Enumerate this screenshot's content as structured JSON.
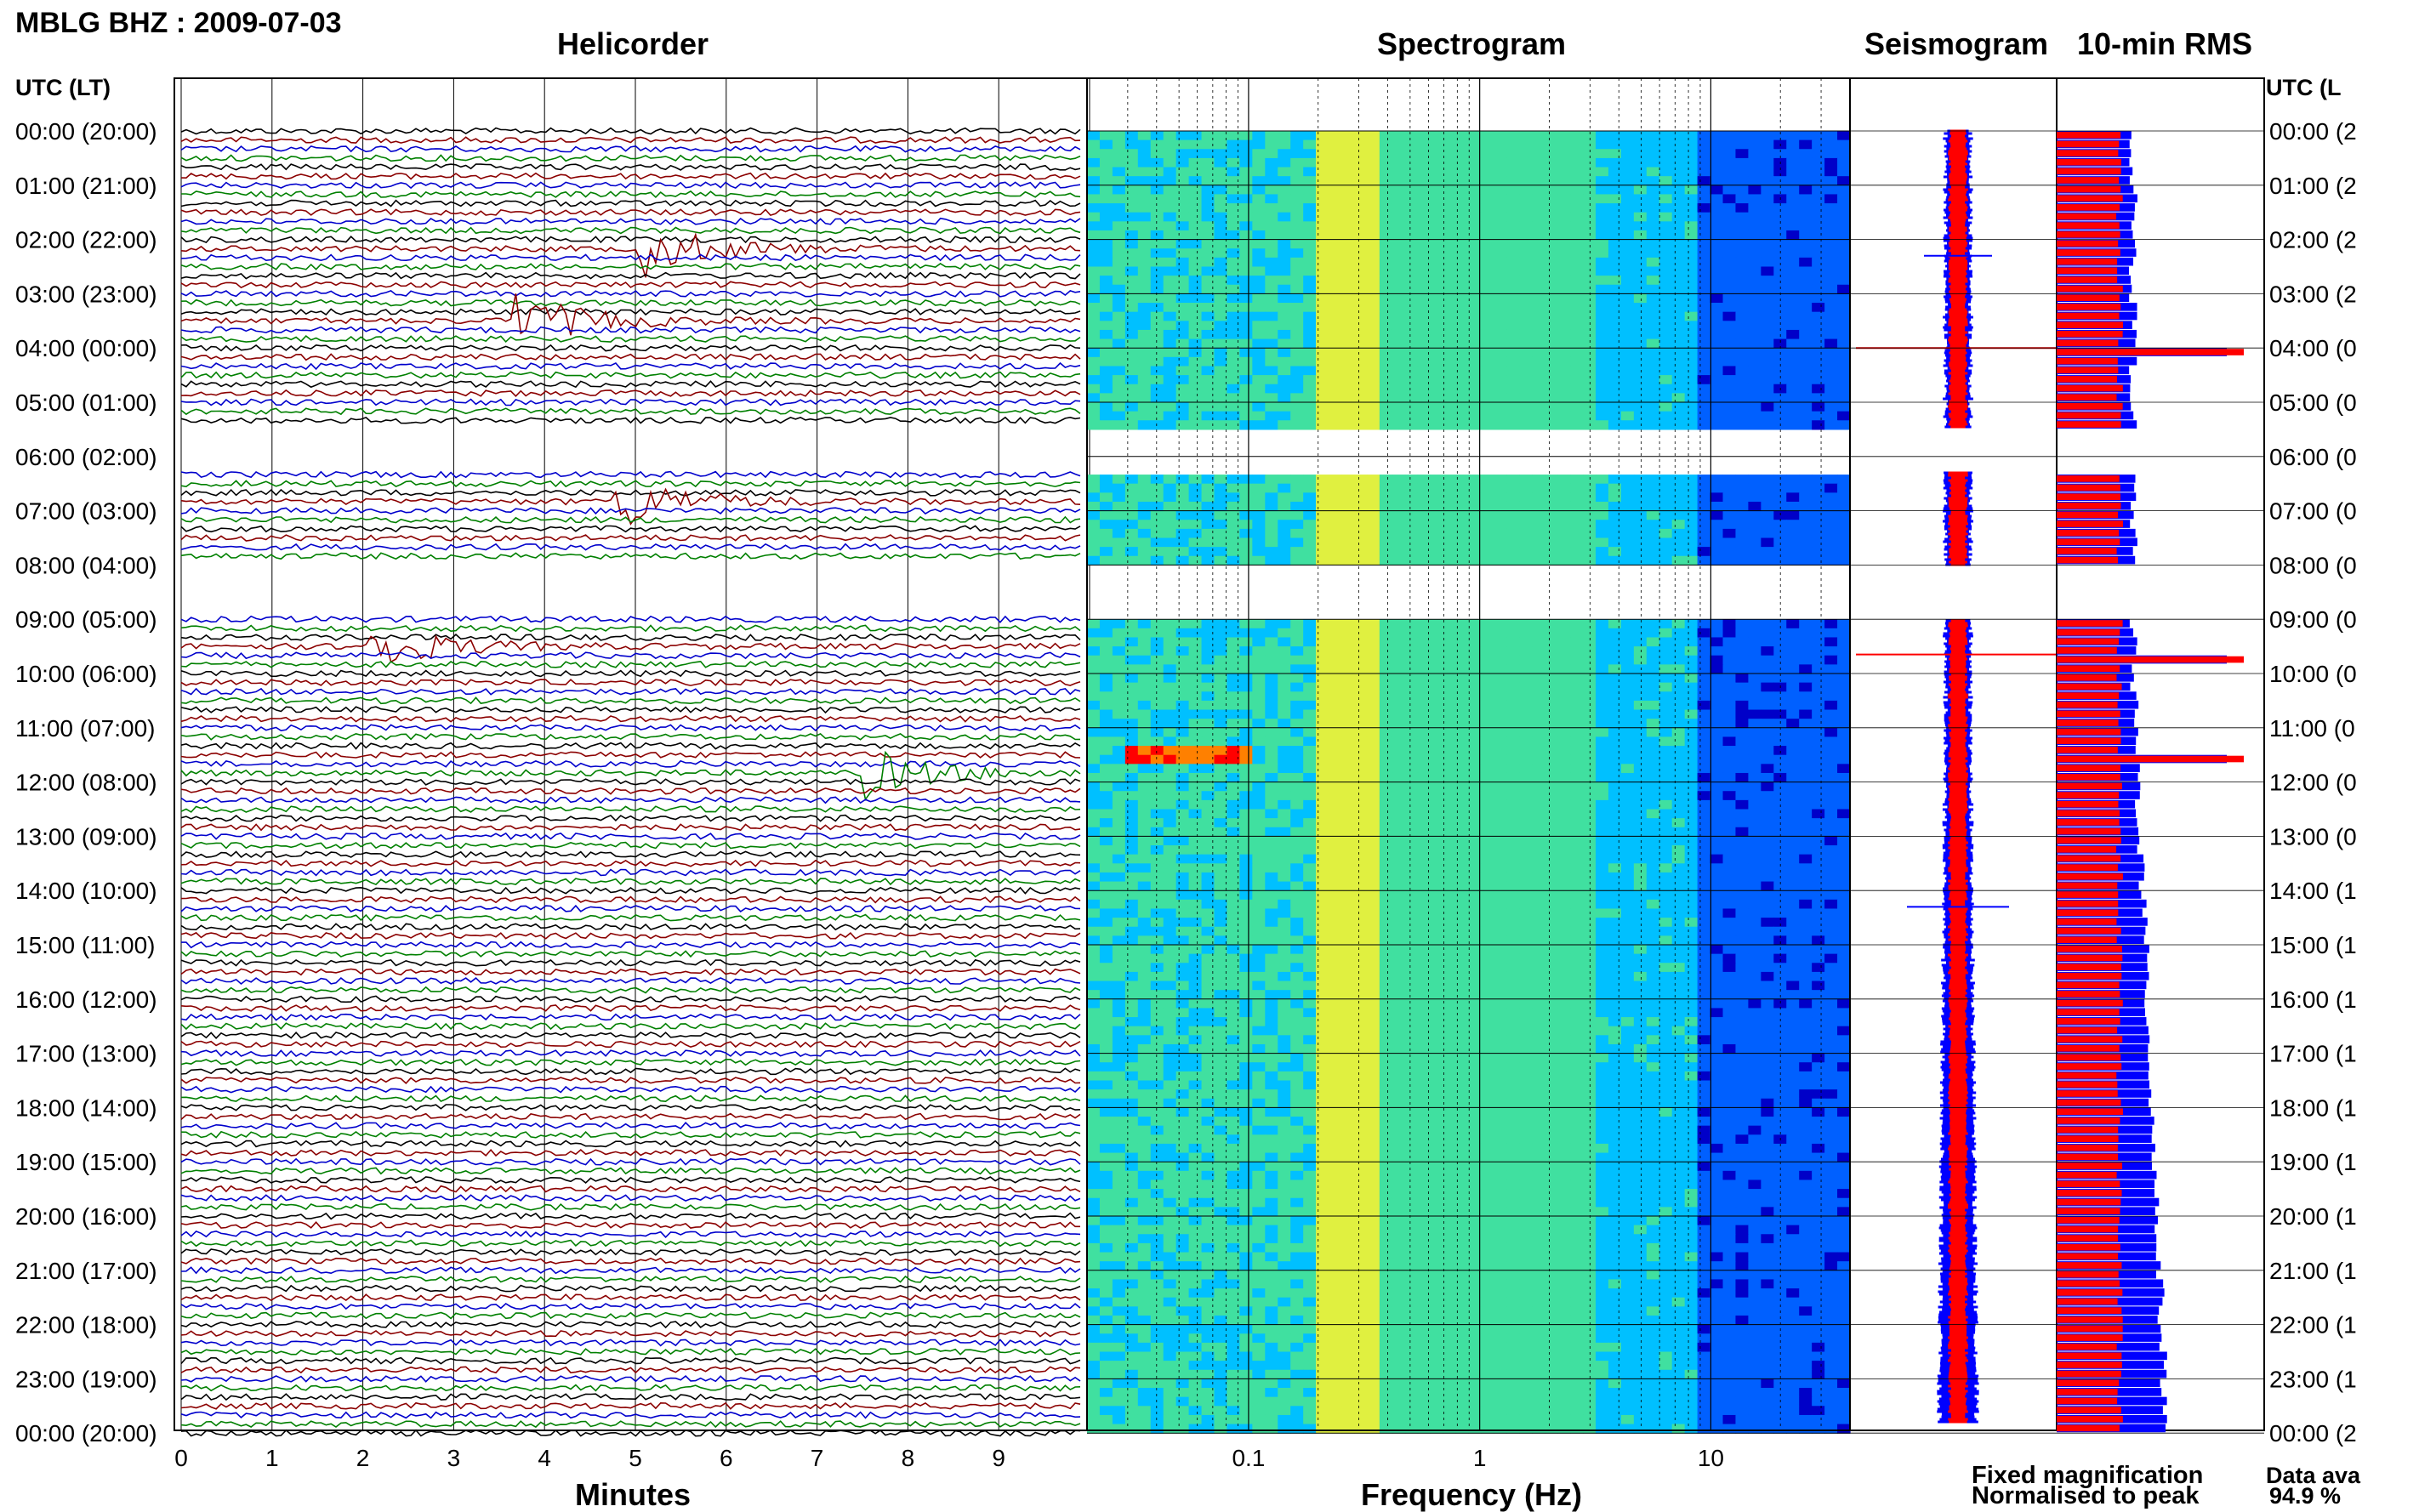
{
  "header": {
    "station": "MBLG BHZ : 2009-07-03",
    "utc_label_left": "UTC (LT)",
    "utc_label_right": "UTC (L"
  },
  "chart_data": [
    {
      "type": "line",
      "title": "Helicorder",
      "xlabel": "Minutes",
      "xlim": [
        0,
        10
      ],
      "x_ticks": [
        "0",
        "1",
        "2",
        "3",
        "4",
        "5",
        "6",
        "7",
        "8",
        "9"
      ],
      "row_labels": [
        "00:00 (20:00)",
        "01:00 (21:00)",
        "02:00 (22:00)",
        "03:00 (23:00)",
        "04:00 (00:00)",
        "05:00 (01:00)",
        "06:00 (02:00)",
        "07:00 (03:00)",
        "08:00 (04:00)",
        "09:00 (05:00)",
        "10:00 (06:00)",
        "11:00 (07:00)",
        "12:00 (08:00)",
        "13:00 (09:00)",
        "14:00 (10:00)",
        "15:00 (11:00)",
        "16:00 (12:00)",
        "17:00 (13:00)",
        "18:00 (14:00)",
        "19:00 (15:00)",
        "20:00 (16:00)",
        "21:00 (17:00)",
        "22:00 (18:00)",
        "23:00 (19:00)",
        "00:00 (20:00)"
      ],
      "rows_per_hour": 6,
      "trace_colors": [
        "#000000",
        "#8b0000",
        "#0000cc",
        "#008000"
      ],
      "gaps_hours": [
        [
          5.5,
          6.3
        ],
        [
          8.0,
          9.0
        ]
      ],
      "events": [
        {
          "hour": 3.5,
          "minute": 3.8,
          "label_color": "#008000"
        },
        {
          "hour": 9.5,
          "minute": 2.1,
          "label_color": "#0000cc"
        },
        {
          "hour": 2.2,
          "minute": 5.2,
          "label_color": "#0000cc"
        },
        {
          "hour": 11.8,
          "minute": 7.6,
          "label_color": "#000000"
        },
        {
          "hour": 6.9,
          "minute": 4.9,
          "label_color": "#0000cc"
        }
      ]
    },
    {
      "type": "heatmap",
      "title": "Spectrogram",
      "xlabel": "Frequency (Hz)",
      "x_scale": "log",
      "xlim": [
        0.02,
        40
      ],
      "x_ticks": [
        {
          "value": 0.1,
          "label": "0.1"
        },
        {
          "value": 1,
          "label": "1"
        },
        {
          "value": 10,
          "label": "10"
        }
      ],
      "colormap": [
        "#0000c8",
        "#0060ff",
        "#00c0ff",
        "#40e0a0",
        "#e0f040",
        "#ff8000",
        "#ff0000"
      ]
    },
    {
      "type": "line",
      "title": "Seismogram",
      "series": [
        {
          "name": "Fixed magnification",
          "color": "#0000ff"
        },
        {
          "name": "Normalised to peak",
          "color": "#ff0000"
        }
      ]
    },
    {
      "type": "bar",
      "title": "10-min RMS",
      "orientation": "horizontal",
      "bins_per_hour": 6,
      "fixed_color": "#0000ff",
      "normalised_color": "#ff0000",
      "peaks_hours": [
        4.0,
        9.6,
        11.5
      ]
    }
  ],
  "legend": {
    "fixed": "Fixed magnification",
    "normalised": "Normalised to peak",
    "fixed_color": "#0000ff",
    "normalised_color": "#ff0000"
  },
  "data_availability": {
    "label": "Data ava",
    "value": "94.9 %"
  }
}
